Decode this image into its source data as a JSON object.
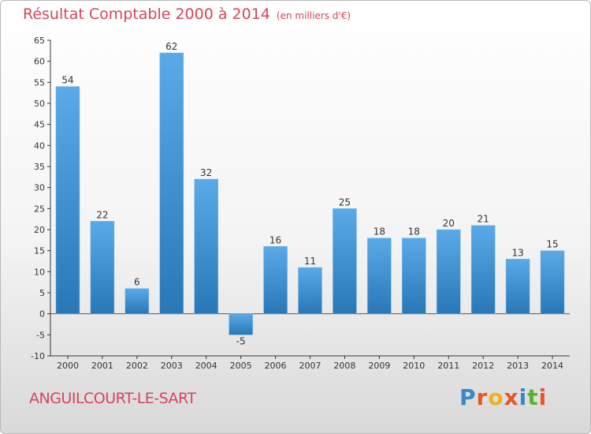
{
  "header": {
    "title": "Résultat Comptable 2000 à 2014",
    "subtitle": "(en milliers d'€)"
  },
  "footer": {
    "commune": "ANGUILCOURT-LE-SART",
    "logo_text": "Proxiti"
  },
  "colors": {
    "title": "#d4455a",
    "bar_light": "#5aaae8",
    "bar_dark": "#2878b8",
    "logo": [
      "#3a86c8",
      "#e8552a",
      "#f0b020",
      "#e8552a",
      "#3a86c8",
      "#5ab030",
      "#e8552a"
    ]
  },
  "chart_data": {
    "type": "bar",
    "categories": [
      "2000",
      "2001",
      "2002",
      "2003",
      "2004",
      "2005",
      "2006",
      "2007",
      "2008",
      "2009",
      "2010",
      "2011",
      "2012",
      "2013",
      "2014"
    ],
    "values": [
      54,
      22,
      6,
      62,
      32,
      -5,
      16,
      11,
      25,
      18,
      18,
      20,
      21,
      13,
      15
    ],
    "ylim": [
      -10,
      65
    ],
    "yticks": [
      -10,
      -5,
      0,
      5,
      10,
      15,
      20,
      25,
      30,
      35,
      40,
      45,
      50,
      55,
      60,
      65
    ],
    "grid": false,
    "data_labels": true
  }
}
